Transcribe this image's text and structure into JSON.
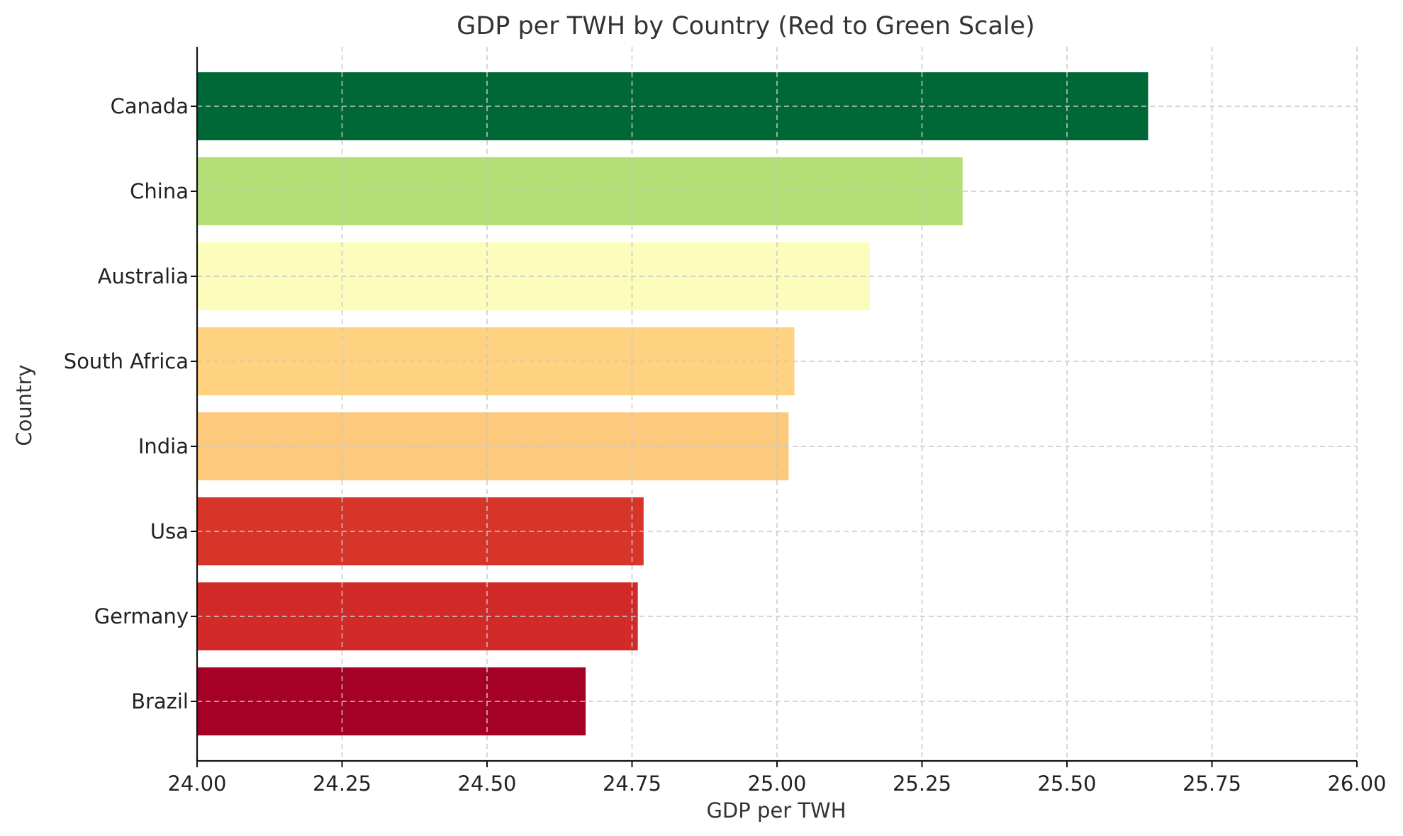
{
  "chart_data": {
    "type": "bar",
    "orientation": "horizontal",
    "title": "GDP per TWH by Country (Red to Green Scale)",
    "xlabel": "GDP per TWH",
    "ylabel": "Country",
    "xlim": [
      24.0,
      26.0
    ],
    "xticks": [
      "24.00",
      "24.25",
      "24.50",
      "24.75",
      "25.00",
      "25.25",
      "25.50",
      "25.75",
      "26.00"
    ],
    "grid": true,
    "categories": [
      "Canada",
      "China",
      "Australia",
      "South Africa",
      "India",
      "Usa",
      "Germany",
      "Brazil"
    ],
    "values": [
      25.64,
      25.32,
      25.16,
      25.03,
      25.02,
      24.77,
      24.76,
      24.67
    ],
    "colors": [
      "#006837",
      "#b3df76",
      "#fcfdbc",
      "#fed281",
      "#fdc97c",
      "#d8352a",
      "#d22a28",
      "#a50026"
    ]
  }
}
